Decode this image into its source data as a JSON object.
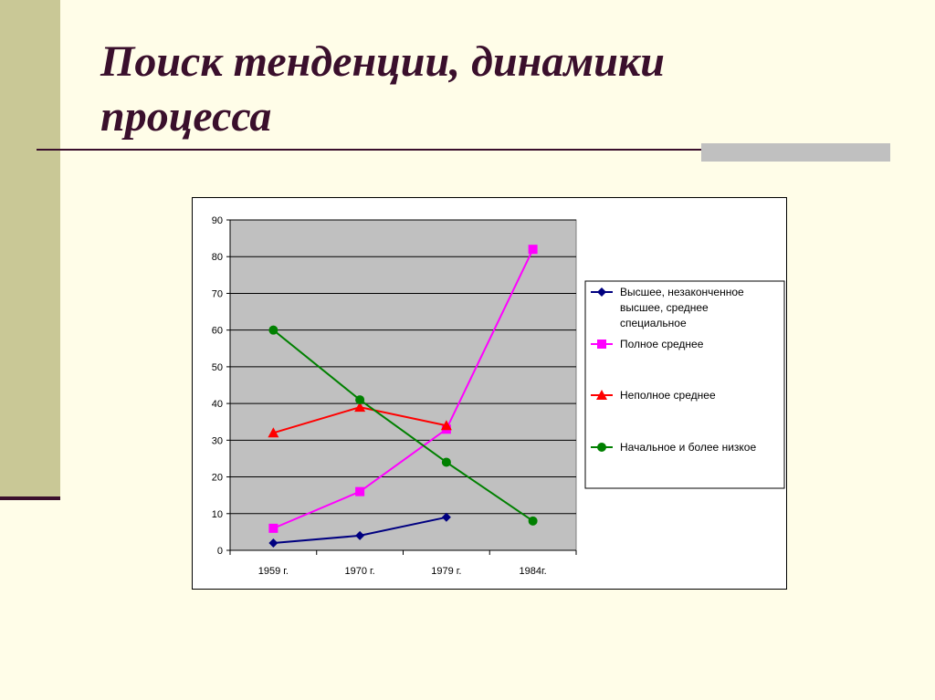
{
  "slide": {
    "title_line1": "Поиск тенденции, динамики",
    "title_line2": "процесса"
  },
  "colors": {
    "title": "#3a0f2c",
    "plot_bg": "#c0c0c0"
  },
  "chart_data": {
    "type": "line",
    "title": "",
    "xlabel": "",
    "ylabel": "",
    "categories": [
      "1959 г.",
      "1970 г.",
      "1979 г.",
      "1984г."
    ],
    "y_ticks": [
      "0",
      "10",
      "20",
      "30",
      "40",
      "50",
      "60",
      "70",
      "80",
      "90"
    ],
    "ylim": [
      0,
      90
    ],
    "grid": true,
    "legend_position": "right",
    "series": [
      {
        "name": "Высшее, незаконченное высшее, среднее специальное",
        "legend_lines": [
          "Высшее, незаконченное",
          "высшее, среднее",
          "специальное"
        ],
        "values": [
          2,
          4,
          9,
          null
        ],
        "color": "#000080",
        "marker": "diamond"
      },
      {
        "name": "Полное среднее",
        "legend_lines": [
          "Полное среднее"
        ],
        "values": [
          6,
          16,
          33,
          82
        ],
        "color": "#ff00ff",
        "marker": "square"
      },
      {
        "name": "Неполное среднее",
        "legend_lines": [
          "Неполное среднее"
        ],
        "values": [
          32,
          39,
          34,
          null
        ],
        "color": "#ff0000",
        "marker": "triangle"
      },
      {
        "name": "Начальное и более низкое",
        "legend_lines": [
          "Начальное и более низкое"
        ],
        "values": [
          60,
          41,
          24,
          8
        ],
        "color": "#008000",
        "marker": "circle"
      }
    ]
  }
}
